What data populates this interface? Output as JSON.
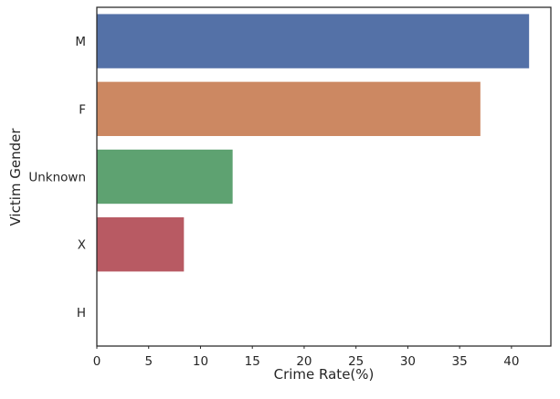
{
  "chart_data": {
    "type": "bar",
    "orientation": "horizontal",
    "categories": [
      "M",
      "F",
      "Unknown",
      "X",
      "H"
    ],
    "values": [
      41.7,
      37.0,
      13.1,
      8.4,
      0.02
    ],
    "colors": [
      "#5471a7",
      "#cc8862",
      "#5ea271",
      "#b85a63",
      "#8172b3"
    ],
    "xlabel": "Crime Rate(%)",
    "ylabel": "Victim Gender",
    "xlim": [
      0,
      43.8
    ],
    "xticks": [
      0,
      5,
      10,
      15,
      20,
      25,
      30,
      35,
      40
    ],
    "grid": false,
    "legend": "none"
  }
}
